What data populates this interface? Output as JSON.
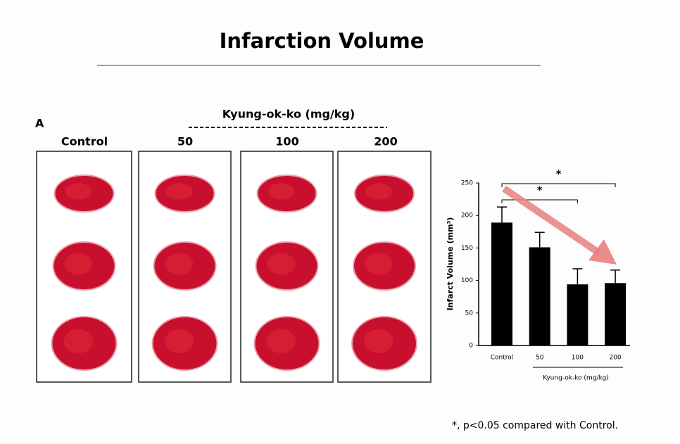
{
  "header": {
    "title": "Infarction Volume"
  },
  "figure": {
    "panel_label": "A",
    "group_label": "Kyung-ok-ko  (mg/kg)",
    "columns": [
      "Control",
      "50",
      "100",
      "200"
    ]
  },
  "chart_data": {
    "type": "bar",
    "ylabel": "Infarct Volume (mm³)",
    "categories": [
      "Control",
      "50",
      "100",
      "200"
    ],
    "values": [
      189,
      151,
      94,
      96
    ],
    "errors": [
      24,
      23,
      24,
      20
    ],
    "color": "#000000",
    "ylim": [
      0,
      250
    ],
    "yticks": [
      0,
      50,
      100,
      150,
      200,
      250
    ],
    "x_group_label": "Kyung-ok-ko (mg/kg)",
    "annotations": [
      "*",
      "*"
    ]
  },
  "footnote": "*, p<0.05 compared with Control."
}
